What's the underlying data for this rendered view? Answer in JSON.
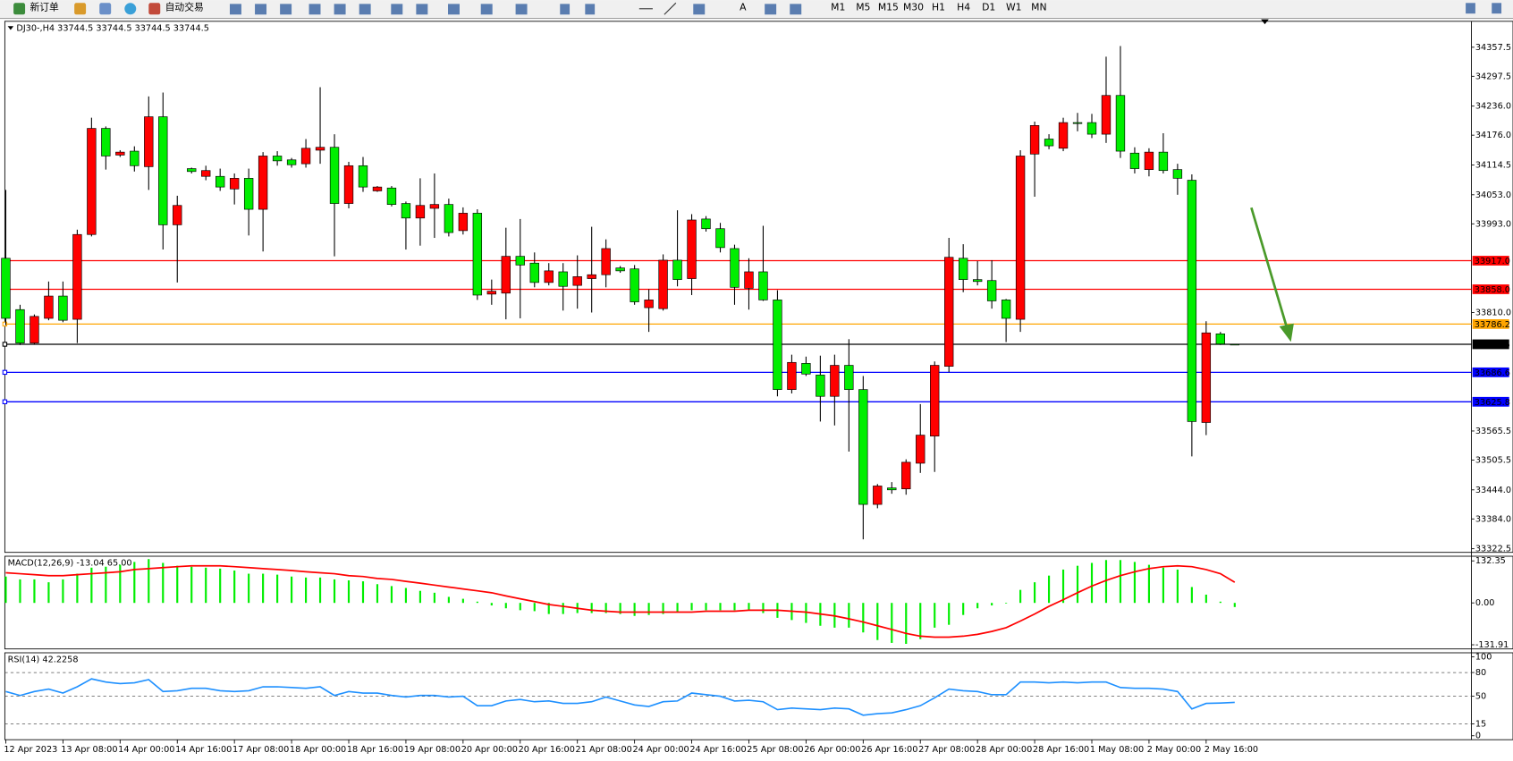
{
  "toolbar": {
    "new_order": "新订单",
    "auto_trade": "自动交易",
    "timeframes": [
      "M1",
      "M5",
      "M15",
      "M30",
      "H1",
      "H4",
      "D1",
      "W1",
      "MN"
    ]
  },
  "chart_data": [
    {
      "type": "candlestick",
      "title": "DJ30-,H4  33744.5 33744.5 33744.5 33744.5",
      "up_color": "#ff0000",
      "down_color": "#00ee00",
      "categories": [
        "12 Apr 2023",
        null,
        null,
        null,
        "13 Apr 08:00",
        null,
        null,
        null,
        "14 Apr 00:00",
        null,
        null,
        null,
        "14 Apr 16:00",
        null,
        null,
        null,
        "17 Apr 08:00",
        null,
        null,
        null,
        "18 Apr 00:00",
        null,
        null,
        null,
        "18 Apr 16:00",
        null,
        null,
        null,
        "19 Apr 08:00",
        null,
        null,
        null,
        "20 Apr 00:00",
        null,
        null,
        null,
        "20 Apr 16:00",
        null,
        null,
        null,
        "21 Apr 08:00",
        null,
        null,
        null,
        "24 Apr 00:00",
        null,
        null,
        null,
        "24 Apr 16:00",
        null,
        null,
        null,
        "25 Apr 08:00",
        null,
        null,
        null,
        "26 Apr 00:00",
        null,
        null,
        null,
        "26 Apr 16:00",
        null,
        null,
        null,
        "27 Apr 08:00",
        null,
        null,
        null,
        "28 Apr 00:00",
        null,
        null,
        null,
        "28 Apr 16:00",
        null,
        null,
        null,
        "1 May 08:00",
        null,
        null,
        null,
        "2 May 00:00",
        null,
        null,
        null,
        "2 May 16:00",
        null,
        null
      ],
      "ohlc": [
        [
          33922,
          34063,
          33784,
          33798
        ],
        [
          33816,
          33826,
          33743,
          33747
        ],
        [
          33747,
          33806,
          33745,
          33802
        ],
        [
          33798,
          33874,
          33794,
          33844
        ],
        [
          33844,
          33874,
          33790,
          33794
        ],
        [
          33796,
          33981,
          33747,
          33971
        ],
        [
          33971,
          34212,
          33967,
          34190
        ],
        [
          34190,
          34194,
          34105,
          34133
        ],
        [
          34135,
          34145,
          34131,
          34141
        ],
        [
          34143,
          34153,
          34101,
          34113
        ],
        [
          34111,
          34256,
          34063,
          34214
        ],
        [
          34214,
          34264,
          33940,
          33991
        ],
        [
          33991,
          34051,
          33872,
          34031
        ],
        [
          34107,
          34109,
          34097,
          34101
        ],
        [
          34091,
          34113,
          34083,
          34103
        ],
        [
          34091,
          34107,
          34061,
          34069
        ],
        [
          34065,
          34097,
          34033,
          34087
        ],
        [
          34087,
          34107,
          33969,
          34023
        ],
        [
          34023,
          34141,
          33936,
          34133
        ],
        [
          34133,
          34143,
          34113,
          34123
        ],
        [
          34125,
          34129,
          34109,
          34115
        ],
        [
          34117,
          34168,
          34109,
          34149
        ],
        [
          34145,
          34275,
          34117,
          34151
        ],
        [
          34151,
          34178,
          33926,
          34035
        ],
        [
          34035,
          34121,
          34025,
          34113
        ],
        [
          34113,
          34131,
          34059,
          34069
        ],
        [
          34061,
          34071,
          34059,
          34069
        ],
        [
          34067,
          34071,
          34029,
          34033
        ],
        [
          34035,
          34039,
          33940,
          34005
        ],
        [
          34005,
          34087,
          33948,
          34031
        ],
        [
          34025,
          34097,
          33964,
          34033
        ],
        [
          34033,
          34045,
          33967,
          33975
        ],
        [
          33979,
          34027,
          33971,
          34015
        ],
        [
          34015,
          34023,
          33836,
          33846
        ],
        [
          33848,
          33878,
          33826,
          33854
        ],
        [
          33850,
          33985,
          33796,
          33926
        ],
        [
          33926,
          34003,
          33798,
          33908
        ],
        [
          33912,
          33934,
          33862,
          33872
        ],
        [
          33872,
          33912,
          33866,
          33896
        ],
        [
          33894,
          33912,
          33814,
          33864
        ],
        [
          33866,
          33928,
          33818,
          33884
        ],
        [
          33880,
          33987,
          33810,
          33888
        ],
        [
          33888,
          33961,
          33862,
          33942
        ],
        [
          33902,
          33906,
          33892,
          33896
        ],
        [
          33900,
          33908,
          33826,
          33832
        ],
        [
          33820,
          33858,
          33770,
          33836
        ],
        [
          33818,
          33930,
          33814,
          33918
        ],
        [
          33918,
          34021,
          33864,
          33878
        ],
        [
          33880,
          34013,
          33846,
          34001
        ],
        [
          34003,
          34009,
          33977,
          33983
        ],
        [
          33983,
          33995,
          33934,
          33944
        ],
        [
          33942,
          33950,
          33826,
          33862
        ],
        [
          33860,
          33922,
          33816,
          33894
        ],
        [
          33894,
          33989,
          33834,
          33836
        ],
        [
          33836,
          33856,
          33637,
          33651
        ],
        [
          33651,
          33723,
          33643,
          33707
        ],
        [
          33705,
          33719,
          33679,
          33683
        ],
        [
          33681,
          33721,
          33585,
          33637
        ],
        [
          33637,
          33723,
          33577,
          33701
        ],
        [
          33701,
          33755,
          33523,
          33651
        ],
        [
          33651,
          33679,
          33342,
          33414
        ],
        [
          33414,
          33456,
          33406,
          33452
        ],
        [
          33448,
          33460,
          33436,
          33444
        ],
        [
          33446,
          33507,
          33434,
          33501
        ],
        [
          33499,
          33621,
          33479,
          33557
        ],
        [
          33555,
          33709,
          33481,
          33701
        ],
        [
          33699,
          33964,
          33687,
          33924
        ],
        [
          33922,
          33951,
          33852,
          33878
        ],
        [
          33878,
          33916,
          33866,
          33874
        ],
        [
          33876,
          33918,
          33818,
          33834
        ],
        [
          33836,
          33838,
          33749,
          33798
        ],
        [
          33796,
          34145,
          33770,
          34133
        ],
        [
          34137,
          34204,
          34049,
          34196
        ],
        [
          34168,
          34178,
          34147,
          34154
        ],
        [
          34149,
          34212,
          34143,
          34202
        ],
        [
          34202,
          34222,
          34184,
          34200
        ],
        [
          34202,
          34220,
          34170,
          34178
        ],
        [
          34178,
          34338,
          34160,
          34258
        ],
        [
          34258,
          34360,
          34129,
          34143
        ],
        [
          34139,
          34151,
          34097,
          34107
        ],
        [
          34105,
          34149,
          34091,
          34141
        ],
        [
          34141,
          34180,
          34097,
          34103
        ],
        [
          34105,
          34117,
          34053,
          34087
        ],
        [
          34083,
          34095,
          33513,
          33585
        ],
        [
          33583,
          33792,
          33557,
          33768
        ],
        [
          33766,
          33770,
          33743,
          33745
        ],
        [
          33744.5,
          33744.5,
          33744.5,
          33744.5
        ]
      ],
      "ylim": [
        33315,
        34411
      ],
      "yticks": [
        34357.5,
        34297.5,
        {
          "value": 34236,
          "label": "34236.0"
        },
        {
          "value": 34176,
          "label": "34176.0"
        },
        34114.5,
        {
          "value": 34053,
          "label": "34053.0"
        },
        {
          "value": 33993,
          "label": "33993.0"
        },
        {
          "value": 33810,
          "label": "33810.0"
        },
        33565.5,
        33505.5,
        {
          "value": 33444,
          "label": "33444.0"
        },
        {
          "value": 33384,
          "label": "33384.0"
        },
        33322.5
      ],
      "levels": [
        {
          "value": 33917,
          "label": "33917.0",
          "color": "#ff0000"
        },
        {
          "value": 33858,
          "label": "33858.0",
          "color": "#ff0000"
        },
        {
          "value": 33786.2,
          "label": "33786.2",
          "color": "#ffa500"
        },
        {
          "value": 33744.5,
          "label": "33744.5",
          "color": "#000000"
        },
        {
          "value": 33686.6,
          "label": "33686.6",
          "color": "#0000ff"
        },
        {
          "value": 33625.8,
          "label": "33625.8",
          "color": "#0000ff"
        }
      ]
    },
    {
      "type": "macd",
      "title": "MACD(12,26,9) -13.04 65.00",
      "color": "#00ee00",
      "signal_color": "#ff0000",
      "values": [
        83,
        74,
        74,
        65,
        74,
        92,
        111,
        114,
        120,
        129,
        138,
        126,
        117,
        114,
        111,
        108,
        102,
        92,
        92,
        89,
        83,
        80,
        80,
        74,
        71,
        68,
        59,
        53,
        47,
        38,
        32,
        19,
        13,
        4,
        -8,
        -17,
        -23,
        -26,
        -35,
        -35,
        -32,
        -32,
        -32,
        -35,
        -41,
        -38,
        -35,
        -29,
        -23,
        -23,
        -23,
        -23,
        -23,
        -32,
        -47,
        -54,
        -63,
        -72,
        -78,
        -78,
        -93,
        -117,
        -126,
        -129,
        -114,
        -78,
        -69,
        -38,
        -17,
        -8,
        -2,
        41,
        65,
        86,
        105,
        117,
        126,
        135,
        135,
        129,
        120,
        111,
        105,
        50,
        26,
        4,
        -13.04
      ],
      "signal": [
        95,
        92,
        89,
        86,
        86,
        89,
        92,
        95,
        98,
        105,
        108,
        111,
        114,
        117,
        117,
        117,
        114,
        111,
        108,
        105,
        102,
        98,
        95,
        92,
        86,
        83,
        77,
        74,
        68,
        62,
        56,
        50,
        44,
        38,
        32,
        22,
        13,
        4,
        -5,
        -11,
        -17,
        -23,
        -26,
        -29,
        -29,
        -29,
        -29,
        -29,
        -29,
        -26,
        -26,
        -26,
        -23,
        -23,
        -23,
        -26,
        -29,
        -35,
        -41,
        -50,
        -60,
        -72,
        -84,
        -96,
        -105,
        -108,
        -108,
        -105,
        -99,
        -90,
        -78,
        -57,
        -35,
        -11,
        10,
        32,
        53,
        71,
        86,
        98,
        108,
        114,
        117,
        114,
        105,
        92,
        65
      ],
      "ylim": [
        -145,
        147
      ],
      "yticks": [
        132.35,
        {
          "value": 0,
          "label": "0.00"
        },
        -131.91
      ]
    },
    {
      "type": "line",
      "title": "RSI(14) 42.2258",
      "color": "#1e90ff",
      "grid": true,
      "values": [
        56,
        51,
        56,
        59,
        54,
        62,
        72,
        68,
        66,
        67,
        71,
        56,
        57,
        60,
        60,
        57,
        56,
        57,
        62,
        62,
        61,
        60,
        62,
        51,
        56,
        54,
        54,
        51,
        49,
        51,
        51,
        49,
        50,
        38,
        38,
        44,
        46,
        43,
        44,
        41,
        41,
        43,
        49,
        44,
        39,
        37,
        43,
        44,
        54,
        52,
        50,
        44,
        45,
        43,
        33,
        35,
        34,
        33,
        35,
        34,
        26,
        28,
        29,
        33,
        38,
        48,
        59,
        57,
        56,
        52,
        52,
        68,
        68,
        67,
        68,
        67,
        68,
        68,
        61,
        60,
        60,
        59,
        56,
        34,
        41,
        41.5,
        42.2258
      ],
      "ylim": [
        -5,
        105
      ],
      "yticks": [
        100,
        80,
        50,
        15,
        0
      ]
    }
  ]
}
